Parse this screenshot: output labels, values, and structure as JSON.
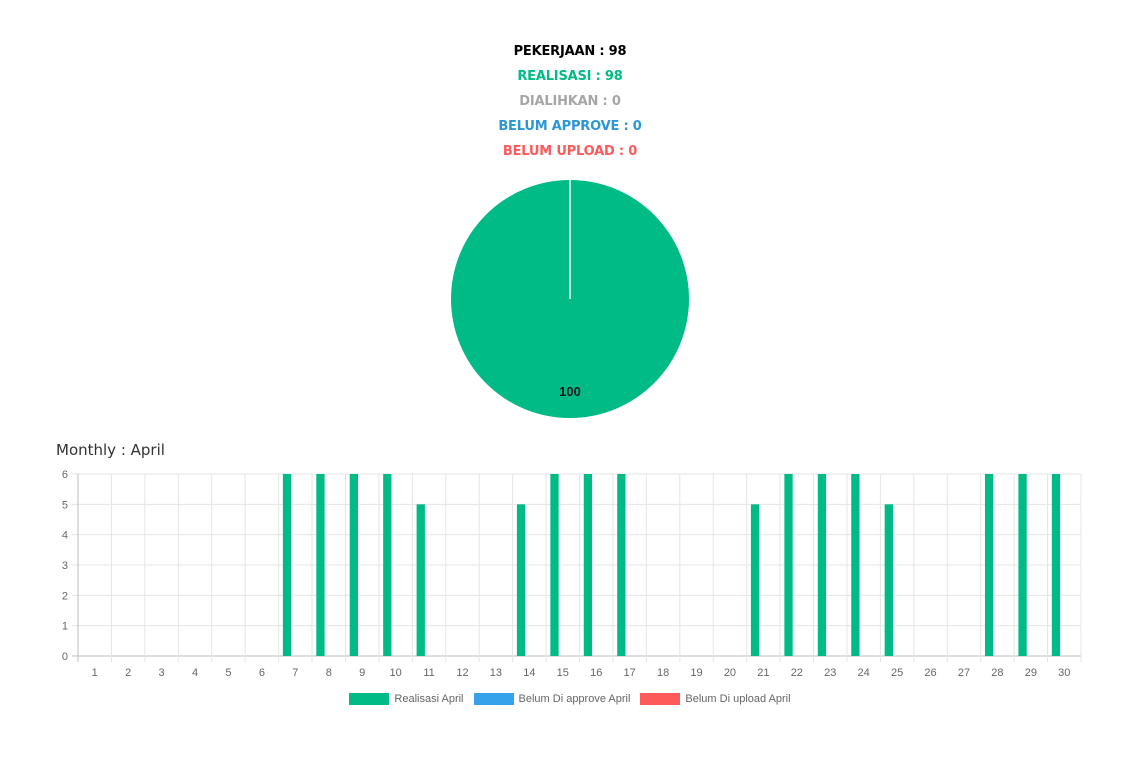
{
  "summary": {
    "pekerjaan": "PEKERJAAN : 98",
    "realisasi": "REALISASI : 98",
    "dialihkan": "DIALIHKAN : 0",
    "belum_approve": "BELUM APPROVE : 0",
    "belum_upload": "BELUM UPLOAD : 0"
  },
  "colors": {
    "pekerjaan": "#000000",
    "realisasi": "#00bb86",
    "dialihkan": "#a6a6a6",
    "belum_approve": "#2b97d6",
    "belum_upload": "#ff5a5a"
  },
  "monthly_title": "Monthly : April",
  "chart_data": [
    {
      "type": "pie",
      "values": [
        100
      ],
      "labels": [
        "100"
      ],
      "colors": [
        "#00bb86"
      ]
    },
    {
      "type": "bar",
      "categories": [
        "1",
        "2",
        "3",
        "4",
        "5",
        "6",
        "7",
        "8",
        "9",
        "10",
        "11",
        "12",
        "13",
        "14",
        "15",
        "16",
        "17",
        "18",
        "19",
        "20",
        "21",
        "22",
        "23",
        "24",
        "25",
        "26",
        "27",
        "28",
        "29",
        "30"
      ],
      "series": [
        {
          "name": "Realisasi April",
          "color": "#00bb86",
          "values": [
            0,
            0,
            0,
            0,
            0,
            0,
            6,
            6,
            6,
            6,
            5,
            0,
            0,
            5,
            6,
            6,
            6,
            0,
            0,
            0,
            5,
            6,
            6,
            6,
            5,
            0,
            0,
            6,
            6,
            6
          ]
        },
        {
          "name": "Belum Di approve April",
          "color": "#36a2eb",
          "values": [
            0,
            0,
            0,
            0,
            0,
            0,
            0,
            0,
            0,
            0,
            0,
            0,
            0,
            0,
            0,
            0,
            0,
            0,
            0,
            0,
            0,
            0,
            0,
            0,
            0,
            0,
            0,
            0,
            0,
            0
          ]
        },
        {
          "name": "Belum Di upload April",
          "color": "#ff5a5a",
          "values": [
            0,
            0,
            0,
            0,
            0,
            0,
            0,
            0,
            0,
            0,
            0,
            0,
            0,
            0,
            0,
            0,
            0,
            0,
            0,
            0,
            0,
            0,
            0,
            0,
            0,
            0,
            0,
            0,
            0,
            0
          ]
        }
      ],
      "yticks": [
        "0",
        "1",
        "2",
        "3",
        "4",
        "5",
        "6"
      ],
      "ylim": [
        0,
        6
      ],
      "grid": true,
      "legend_position": "bottom"
    }
  ]
}
